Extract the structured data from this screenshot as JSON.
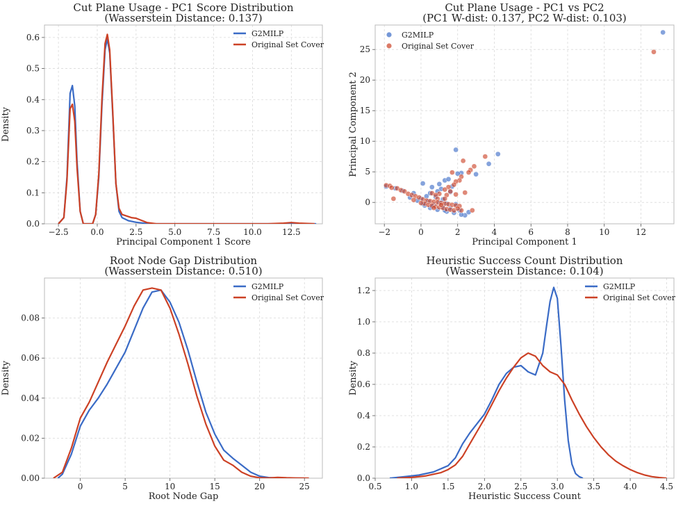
{
  "colors": {
    "g2milp": "#3a6bc6",
    "original": "#cc4125",
    "grid": "#d9d9d9",
    "axis": "#bbbbbb"
  },
  "chart_data": [
    {
      "type": "line",
      "title": "Cut Plane Usage - PC1 Score Distribution",
      "subtitle": "(Wasserstein Distance: 0.137)",
      "xlabel": "Principal Component 1 Score",
      "ylabel": "Density",
      "xlim": [
        -3.4,
        14.5
      ],
      "ylim": [
        0,
        0.64
      ],
      "xticks": [
        -2.5,
        0.0,
        2.5,
        5.0,
        7.5,
        10.0,
        12.5
      ],
      "xtick_labels": [
        "−2.5",
        "0.0",
        "2.5",
        "5.0",
        "7.5",
        "10.0",
        "12.5"
      ],
      "yticks": [
        0.0,
        0.1,
        0.2,
        0.3,
        0.4,
        0.5,
        0.6
      ],
      "ytick_labels": [
        "0.0",
        "0.1",
        "0.2",
        "0.3",
        "0.4",
        "0.5",
        "0.6"
      ],
      "legend": "top-right",
      "series": [
        {
          "name": "G2MILP",
          "color": "#3a6bc6",
          "x": [
            -2.5,
            -2.15,
            -1.95,
            -1.75,
            -1.6,
            -1.45,
            -1.3,
            -1.1,
            -0.9,
            -0.6,
            -0.3,
            -0.1,
            0.1,
            0.3,
            0.5,
            0.65,
            0.8,
            1.0,
            1.2,
            1.4,
            1.6,
            2.0,
            2.5,
            3.0,
            3.5,
            5.0,
            8.0,
            11.0,
            12.5,
            14.1
          ],
          "y": [
            0.0,
            0.02,
            0.15,
            0.42,
            0.445,
            0.38,
            0.2,
            0.04,
            0.0,
            0.0,
            0.0,
            0.03,
            0.15,
            0.38,
            0.56,
            0.595,
            0.55,
            0.35,
            0.13,
            0.04,
            0.02,
            0.01,
            0.005,
            0.002,
            0.0,
            0.0,
            0.0,
            0.0,
            0.0,
            0.0
          ]
        },
        {
          "name": "Original Set Cover",
          "color": "#cc4125",
          "x": [
            -2.5,
            -2.15,
            -1.95,
            -1.75,
            -1.6,
            -1.45,
            -1.3,
            -1.1,
            -0.9,
            -0.6,
            -0.3,
            -0.1,
            0.1,
            0.3,
            0.5,
            0.65,
            0.8,
            1.0,
            1.2,
            1.4,
            1.6,
            1.9,
            2.2,
            2.5,
            2.8,
            3.2,
            3.8,
            5.0,
            8.0,
            11.0,
            12.0,
            12.5,
            13.0,
            14.0
          ],
          "y": [
            0.0,
            0.02,
            0.14,
            0.37,
            0.385,
            0.33,
            0.18,
            0.04,
            0.0,
            0.0,
            0.0,
            0.03,
            0.16,
            0.4,
            0.58,
            0.61,
            0.56,
            0.36,
            0.13,
            0.05,
            0.03,
            0.025,
            0.02,
            0.018,
            0.012,
            0.004,
            0.0,
            0.0,
            0.0,
            0.0,
            0.002,
            0.004,
            0.002,
            0.0
          ]
        }
      ]
    },
    {
      "type": "scatter",
      "title": "Cut Plane Usage - PC1 vs PC2",
      "subtitle": "(PC1 W-dist: 0.137, PC2 W-dist: 0.103)",
      "xlabel": "Principal Component 1",
      "ylabel": "Principal Component 2",
      "xlim": [
        -2.5,
        13.8
      ],
      "ylim": [
        -3.5,
        29.0
      ],
      "xticks": [
        -2,
        0,
        2,
        4,
        6,
        8,
        10,
        12
      ],
      "xtick_labels": [
        "−2",
        "0",
        "2",
        "4",
        "6",
        "8",
        "10",
        "12"
      ],
      "yticks": [
        0,
        5,
        10,
        15,
        20,
        25
      ],
      "ytick_labels": [
        "0",
        "5",
        "10",
        "15",
        "20",
        "25"
      ],
      "legend": "top-left",
      "series": [
        {
          "name": "G2MILP",
          "color": "#3a6bc6",
          "points": [
            [
              13.2,
              27.8
            ],
            [
              1.9,
              8.6
            ],
            [
              4.2,
              7.9
            ],
            [
              3.7,
              6.3
            ],
            [
              2.2,
              4.8
            ],
            [
              2.0,
              4.7
            ],
            [
              3.0,
              4.6
            ],
            [
              1.3,
              3.6
            ],
            [
              1.5,
              3.8
            ],
            [
              0.1,
              3.1
            ],
            [
              1.0,
              3.0
            ],
            [
              1.7,
              2.6
            ],
            [
              0.6,
              2.5
            ],
            [
              1.1,
              2.2
            ],
            [
              0.9,
              1.8
            ],
            [
              0.5,
              1.5
            ],
            [
              1.6,
              1.7
            ],
            [
              0.3,
              1.0
            ],
            [
              0.0,
              0.6
            ],
            [
              0.8,
              0.9
            ],
            [
              1.2,
              0.5
            ],
            [
              -0.6,
              0.8
            ],
            [
              -0.2,
              0.3
            ],
            [
              0.4,
              0.2
            ],
            [
              1.0,
              0.0
            ],
            [
              1.4,
              -0.2
            ],
            [
              0.2,
              -0.5
            ],
            [
              0.7,
              -0.4
            ],
            [
              1.9,
              -0.3
            ],
            [
              1.2,
              -0.8
            ],
            [
              1.6,
              -1.0
            ],
            [
              0.9,
              -1.2
            ],
            [
              2.1,
              -1.3
            ],
            [
              2.4,
              -2.1
            ],
            [
              2.2,
              -2.0
            ],
            [
              1.8,
              -1.7
            ],
            [
              1.4,
              -1.5
            ],
            [
              0.5,
              -0.9
            ],
            [
              -1.4,
              2.3
            ],
            [
              -1.0,
              1.9
            ],
            [
              -0.4,
              1.5
            ],
            [
              -1.9,
              2.6
            ],
            [
              2.6,
              -1.6
            ],
            [
              0.1,
              -0.2
            ],
            [
              1.3,
              -1.3
            ],
            [
              0.6,
              -0.7
            ]
          ]
        },
        {
          "name": "Original Set Cover",
          "color": "#cc4125",
          "points": [
            [
              12.7,
              24.6
            ],
            [
              3.5,
              7.5
            ],
            [
              2.3,
              6.8
            ],
            [
              2.9,
              5.9
            ],
            [
              2.7,
              5.3
            ],
            [
              2.6,
              4.9
            ],
            [
              1.7,
              4.9
            ],
            [
              2.2,
              4.2
            ],
            [
              2.1,
              3.6
            ],
            [
              1.9,
              3.4
            ],
            [
              1.8,
              2.9
            ],
            [
              1.5,
              2.5
            ],
            [
              1.3,
              2.1
            ],
            [
              1.6,
              1.8
            ],
            [
              0.6,
              1.5
            ],
            [
              1.0,
              1.4
            ],
            [
              0.8,
              1.2
            ],
            [
              1.4,
              1.2
            ],
            [
              0.9,
              0.6
            ],
            [
              -1.9,
              2.8
            ],
            [
              -1.7,
              2.7
            ],
            [
              -1.6,
              2.4
            ],
            [
              -1.3,
              2.3
            ],
            [
              -1.1,
              2.0
            ],
            [
              -0.9,
              1.8
            ],
            [
              -0.7,
              1.4
            ],
            [
              -0.5,
              1.2
            ],
            [
              -0.3,
              1.0
            ],
            [
              -0.1,
              0.8
            ],
            [
              0.1,
              0.5
            ],
            [
              0.3,
              0.3
            ],
            [
              0.5,
              0.2
            ],
            [
              0.7,
              0.1
            ],
            [
              0.9,
              0.0
            ],
            [
              1.1,
              -0.1
            ],
            [
              1.3,
              -0.2
            ],
            [
              1.5,
              -0.3
            ],
            [
              1.7,
              -0.4
            ],
            [
              1.9,
              -0.5
            ],
            [
              2.1,
              -0.6
            ],
            [
              0.2,
              -0.2
            ],
            [
              0.4,
              -0.4
            ],
            [
              0.6,
              -0.5
            ],
            [
              0.8,
              -0.7
            ],
            [
              1.0,
              -0.8
            ],
            [
              1.2,
              -0.9
            ],
            [
              1.4,
              -1.1
            ],
            [
              1.6,
              -1.2
            ],
            [
              1.8,
              -1.3
            ],
            [
              2.2,
              -1.3
            ],
            [
              2.8,
              -1.3
            ],
            [
              -1.5,
              0.6
            ],
            [
              -0.4,
              0.4
            ],
            [
              0.0,
              -0.1
            ],
            [
              1.1,
              -0.4
            ],
            [
              2.0,
              -1.0
            ],
            [
              1.3,
              0.6
            ],
            [
              0.7,
              -0.9
            ],
            [
              1.9,
              1.3
            ],
            [
              2.4,
              1.6
            ]
          ]
        }
      ]
    },
    {
      "type": "line",
      "title": "Root Node Gap Distribution",
      "subtitle": "(Wasserstein Distance: 0.510)",
      "xlabel": "Root Node Gap",
      "ylabel": "Density",
      "xlim": [
        -4.0,
        27.0
      ],
      "ylim": [
        0,
        0.1
      ],
      "xticks": [
        0,
        5,
        10,
        15,
        20,
        25
      ],
      "xtick_labels": [
        "0",
        "5",
        "10",
        "15",
        "20",
        "25"
      ],
      "yticks": [
        0.0,
        0.02,
        0.04,
        0.06,
        0.08
      ],
      "ytick_labels": [
        "0.00",
        "0.02",
        "0.04",
        "0.06",
        "0.08"
      ],
      "legend": "top-right",
      "series": [
        {
          "name": "G2MILP",
          "color": "#3a6bc6",
          "x": [
            -2.5,
            -2.0,
            -1.0,
            0.0,
            1.0,
            2.0,
            3.0,
            4.0,
            5.0,
            6.0,
            7.0,
            8.0,
            9.0,
            10.0,
            11.0,
            12.0,
            13.0,
            14.0,
            15.0,
            16.0,
            17.0,
            18.0,
            19.0,
            20.0,
            21.0,
            22.0,
            23.0,
            24.0,
            25.0
          ],
          "y": [
            0.0,
            0.002,
            0.012,
            0.026,
            0.034,
            0.04,
            0.047,
            0.055,
            0.063,
            0.074,
            0.085,
            0.093,
            0.094,
            0.088,
            0.078,
            0.064,
            0.048,
            0.033,
            0.022,
            0.014,
            0.01,
            0.0065,
            0.003,
            0.001,
            0.0003,
            0.0001,
            0.0,
            0.0,
            0.0
          ]
        },
        {
          "name": "Original Set Cover",
          "color": "#cc4125",
          "x": [
            -3.0,
            -2.0,
            -1.0,
            0.0,
            1.0,
            2.0,
            3.0,
            4.0,
            5.0,
            6.0,
            7.0,
            8.0,
            9.0,
            10.0,
            11.0,
            12.0,
            13.0,
            14.0,
            15.0,
            16.0,
            17.0,
            18.0,
            19.0,
            20.0,
            21.0,
            22.0,
            23.0,
            24.0,
            25.5
          ],
          "y": [
            0.0,
            0.003,
            0.015,
            0.03,
            0.038,
            0.048,
            0.058,
            0.067,
            0.076,
            0.086,
            0.094,
            0.095,
            0.094,
            0.085,
            0.072,
            0.057,
            0.041,
            0.027,
            0.016,
            0.009,
            0.0065,
            0.003,
            0.001,
            0.0002,
            0.0001,
            0.0004,
            0.0002,
            0.0001,
            0.0
          ]
        }
      ]
    },
    {
      "type": "line",
      "title": "Heuristic Success Count Distribution",
      "subtitle": "(Wasserstein Distance: 0.104)",
      "xlabel": "Heuristic Success Count",
      "ylabel": "Density",
      "xlim": [
        0.5,
        4.6
      ],
      "ylim": [
        0,
        1.28
      ],
      "xticks": [
        0.5,
        1.0,
        1.5,
        2.0,
        2.5,
        3.0,
        3.5,
        4.0,
        4.5
      ],
      "xtick_labels": [
        "0.5",
        "1.0",
        "1.5",
        "2.0",
        "2.5",
        "3.0",
        "3.5",
        "4.0",
        "4.5"
      ],
      "yticks": [
        0.0,
        0.2,
        0.4,
        0.6,
        0.8,
        1.0,
        1.2
      ],
      "ytick_labels": [
        "0.0",
        "0.2",
        "0.4",
        "0.6",
        "0.8",
        "1.0",
        "1.2"
      ],
      "legend": "top-right",
      "series": [
        {
          "name": "G2MILP",
          "color": "#3a6bc6",
          "x": [
            0.7,
            0.9,
            1.1,
            1.3,
            1.5,
            1.6,
            1.7,
            1.8,
            1.9,
            2.0,
            2.1,
            2.2,
            2.3,
            2.4,
            2.5,
            2.6,
            2.7,
            2.8,
            2.85,
            2.9,
            2.95,
            3.0,
            3.05,
            3.1,
            3.15,
            3.2,
            3.25,
            3.3,
            3.35
          ],
          "y": [
            0.0,
            0.01,
            0.02,
            0.04,
            0.08,
            0.13,
            0.22,
            0.29,
            0.35,
            0.41,
            0.5,
            0.6,
            0.67,
            0.71,
            0.72,
            0.68,
            0.66,
            0.8,
            0.97,
            1.13,
            1.22,
            1.15,
            0.85,
            0.5,
            0.24,
            0.09,
            0.03,
            0.01,
            0.0
          ]
        },
        {
          "name": "Original Set Cover",
          "color": "#cc4125",
          "x": [
            0.8,
            1.0,
            1.2,
            1.4,
            1.5,
            1.6,
            1.7,
            1.8,
            1.9,
            2.0,
            2.1,
            2.2,
            2.3,
            2.4,
            2.5,
            2.6,
            2.7,
            2.8,
            2.9,
            3.0,
            3.1,
            3.2,
            3.3,
            3.4,
            3.5,
            3.6,
            3.7,
            3.8,
            3.9,
            4.0,
            4.1,
            4.2,
            4.3,
            4.4,
            4.5
          ],
          "y": [
            0.0,
            0.005,
            0.015,
            0.035,
            0.055,
            0.085,
            0.14,
            0.22,
            0.3,
            0.38,
            0.47,
            0.56,
            0.64,
            0.71,
            0.77,
            0.8,
            0.78,
            0.72,
            0.68,
            0.66,
            0.6,
            0.5,
            0.41,
            0.33,
            0.26,
            0.2,
            0.15,
            0.11,
            0.08,
            0.055,
            0.035,
            0.02,
            0.01,
            0.004,
            0.0
          ]
        }
      ]
    }
  ]
}
